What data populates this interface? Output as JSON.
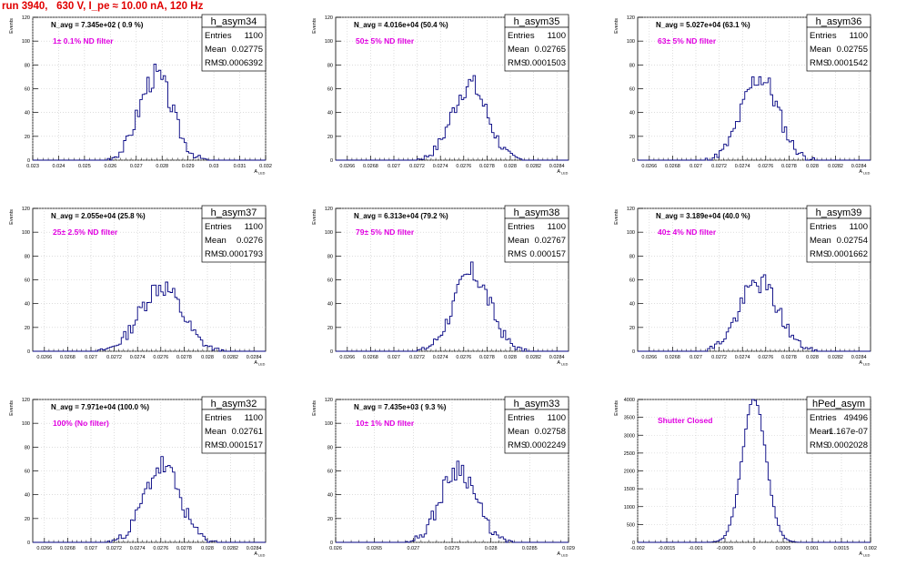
{
  "header": {
    "run_label": "run 3940,   630 V, I_pe ≈ 10.00 nA, 120 Hz"
  },
  "common": {
    "ylabel": "Events",
    "xlabel": "A",
    "xlabel_sub": "LED",
    "stats_entries_label": "Entries",
    "stats_mean_label": "Mean",
    "stats_rms_label": "RMS"
  },
  "colors": {
    "histogram_line": "#000080",
    "filter_text": "#e000e0",
    "header_text": "#e00000",
    "grid": "#c8c8c8"
  },
  "chart_data": [
    {
      "type": "histogram",
      "title": "h_asym34",
      "stats": {
        "entries": "1100",
        "mean": "0.02775",
        "rms": "0.0006392"
      },
      "navg": "N_avg = 7.345e+02 ( 0.9 %)",
      "filter": "1± 0.1% ND filter",
      "xlim": [
        0.023,
        0.032
      ],
      "ylim": [
        0,
        120
      ],
      "xticks": [
        "0.023",
        "0.024",
        "0.025",
        "0.026",
        "0.027",
        "0.028",
        "0.029",
        "0.03",
        "0.031",
        "0.032"
      ],
      "yticks": [
        "0",
        "20",
        "40",
        "60",
        "80",
        "100",
        "120"
      ],
      "peak_x": 0.02775,
      "sigma": 0.00064,
      "peak_y": 71,
      "seed": 3
    },
    {
      "type": "histogram",
      "title": "h_asym35",
      "stats": {
        "entries": "1100",
        "mean": "0.02765",
        "rms": "0.0001503"
      },
      "navg": "N_avg = 4.016e+04 (50.4 %)",
      "filter": "50± 5% ND filter",
      "xlim": [
        0.0265,
        0.0285
      ],
      "ylim": [
        0,
        120
      ],
      "xticks": [
        "0.0266",
        "0.0268",
        "0.027",
        "0.0272",
        "0.0274",
        "0.0276",
        "0.0278",
        "0.028",
        "0.0282",
        "0.0284"
      ],
      "yticks": [
        "0",
        "20",
        "40",
        "60",
        "80",
        "100",
        "120"
      ],
      "peak_x": 0.02765,
      "sigma": 0.00015,
      "peak_y": 64,
      "seed": 7
    },
    {
      "type": "histogram",
      "title": "h_asym36",
      "stats": {
        "entries": "1100",
        "mean": "0.02755",
        "rms": "0.0001542"
      },
      "navg": "N_avg = 5.027e+04 (63.1 %)",
      "filter": "63± 5% ND filter",
      "xlim": [
        0.0265,
        0.0285
      ],
      "ylim": [
        0,
        120
      ],
      "xticks": [
        "0.0266",
        "0.0268",
        "0.027",
        "0.0272",
        "0.0274",
        "0.0276",
        "0.0278",
        "0.028",
        "0.0282",
        "0.0284"
      ],
      "yticks": [
        "0",
        "20",
        "40",
        "60",
        "80",
        "100",
        "120"
      ],
      "peak_x": 0.02755,
      "sigma": 0.000154,
      "peak_y": 70,
      "seed": 11
    },
    {
      "type": "histogram",
      "title": "h_asym37",
      "stats": {
        "entries": "1100",
        "mean": "0.0276",
        "rms": "0.0001793"
      },
      "navg": "N_avg = 2.055e+04 (25.8 %)",
      "filter": "25± 2.5% ND filter",
      "xlim": [
        0.0265,
        0.0285
      ],
      "ylim": [
        0,
        120
      ],
      "xticks": [
        "0.0266",
        "0.0268",
        "0.027",
        "0.0272",
        "0.0274",
        "0.0276",
        "0.0278",
        "0.028",
        "0.0282",
        "0.0284"
      ],
      "yticks": [
        "0",
        "20",
        "40",
        "60",
        "80",
        "100",
        "120"
      ],
      "peak_x": 0.0276,
      "sigma": 0.000179,
      "peak_y": 55,
      "seed": 13
    },
    {
      "type": "histogram",
      "title": "h_asym38",
      "stats": {
        "entries": "1100",
        "mean": "0.02767",
        "rms": "0.000157"
      },
      "navg": "N_avg = 6.313e+04 (79.2 %)",
      "filter": "79± 5% ND filter",
      "xlim": [
        0.0265,
        0.0285
      ],
      "ylim": [
        0,
        120
      ],
      "xticks": [
        "0.0266",
        "0.0268",
        "0.027",
        "0.0272",
        "0.0274",
        "0.0276",
        "0.0278",
        "0.028",
        "0.0282",
        "0.0284"
      ],
      "yticks": [
        "0",
        "20",
        "40",
        "60",
        "80",
        "100",
        "120"
      ],
      "peak_x": 0.02767,
      "sigma": 0.000157,
      "peak_y": 65,
      "seed": 17
    },
    {
      "type": "histogram",
      "title": "h_asym39",
      "stats": {
        "entries": "1100",
        "mean": "0.02754",
        "rms": "0.0001662"
      },
      "navg": "N_avg = 3.189e+04 (40.0 %)",
      "filter": "40± 4% ND filter",
      "xlim": [
        0.0265,
        0.0285
      ],
      "ylim": [
        0,
        120
      ],
      "xticks": [
        "0.0266",
        "0.0268",
        "0.027",
        "0.0272",
        "0.0274",
        "0.0276",
        "0.0278",
        "0.028",
        "0.0282",
        "0.0284"
      ],
      "yticks": [
        "0",
        "20",
        "40",
        "60",
        "80",
        "100",
        "120"
      ],
      "peak_x": 0.02754,
      "sigma": 0.000166,
      "peak_y": 58,
      "seed": 19
    },
    {
      "type": "histogram",
      "title": "h_asym32",
      "stats": {
        "entries": "1100",
        "mean": "0.02761",
        "rms": "0.0001517"
      },
      "navg": "N_avg = 7.971e+04 (100.0 %)",
      "filter": "100% (No filter)",
      "xlim": [
        0.0265,
        0.0285
      ],
      "ylim": [
        0,
        120
      ],
      "xticks": [
        "0.0266",
        "0.0268",
        "0.027",
        "0.0272",
        "0.0274",
        "0.0276",
        "0.0278",
        "0.028",
        "0.0282",
        "0.0284"
      ],
      "yticks": [
        "0",
        "20",
        "40",
        "60",
        "80",
        "100",
        "120"
      ],
      "peak_x": 0.02761,
      "sigma": 0.000152,
      "peak_y": 64,
      "seed": 23
    },
    {
      "type": "histogram",
      "title": "h_asym33",
      "stats": {
        "entries": "1100",
        "mean": "0.02758",
        "rms": "0.0002249"
      },
      "navg": "N_avg = 7.435e+03 ( 9.3 %)",
      "filter": "10± 1% ND filter",
      "xlim": [
        0.026,
        0.029
      ],
      "ylim": [
        0,
        120
      ],
      "xticks": [
        "0.026",
        "0.0265",
        "0.027",
        "0.0275",
        "0.028",
        "0.0285",
        "0.029"
      ],
      "yticks": [
        "0",
        "20",
        "40",
        "60",
        "80",
        "100",
        "120"
      ],
      "peak_x": 0.02758,
      "sigma": 0.000225,
      "peak_y": 63,
      "seed": 29
    },
    {
      "type": "histogram",
      "title": "hPed_asym",
      "stats": {
        "entries": "49496",
        "mean": "-1.167e-07",
        "rms": "0.0002028"
      },
      "navg": "",
      "filter": "Shutter Closed",
      "xlim": [
        -0.002,
        0.002
      ],
      "ylim": [
        0,
        4000
      ],
      "xticks": [
        "-0.002",
        "-0.0015",
        "-0.001",
        "-0.0005",
        "0",
        "0.0005",
        "0.001",
        "0.0015",
        "0.002"
      ],
      "yticks": [
        "0",
        "500",
        "1000",
        "1500",
        "2000",
        "2500",
        "3000",
        "3500",
        "4000"
      ],
      "peak_x": 0.0,
      "sigma": 0.000203,
      "peak_y": 4000,
      "seed": 31
    }
  ]
}
